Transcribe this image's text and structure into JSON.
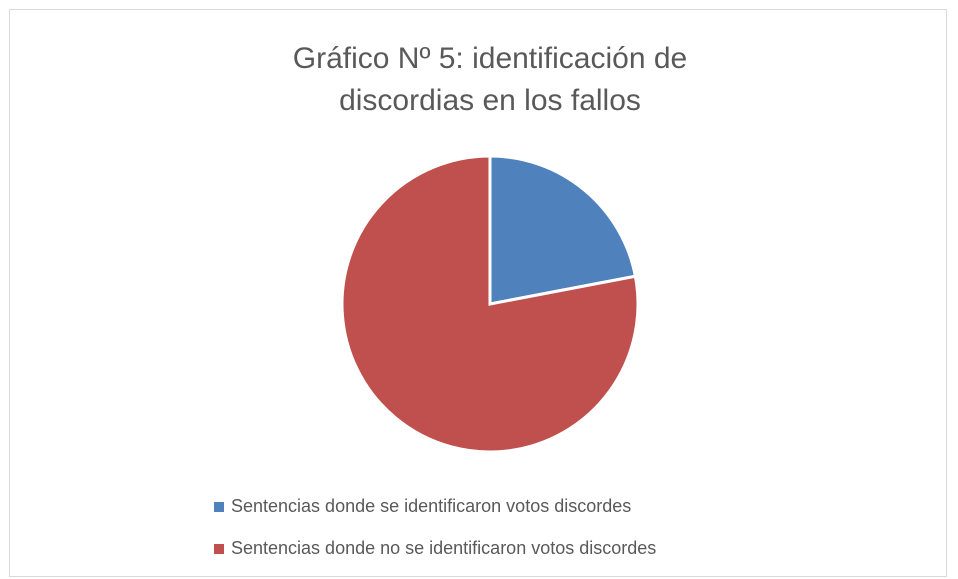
{
  "chart_data": {
    "type": "pie",
    "title": "Gráfico Nº 5: identificación de discordias en los fallos",
    "categories": [
      "Sentencias donde se identificaron votos discordes",
      "Sentencias donde no se identificaron votos discordes"
    ],
    "values": [
      22,
      78
    ],
    "colors": [
      "#4f81bd",
      "#c0504d"
    ],
    "legend": "bottom"
  }
}
